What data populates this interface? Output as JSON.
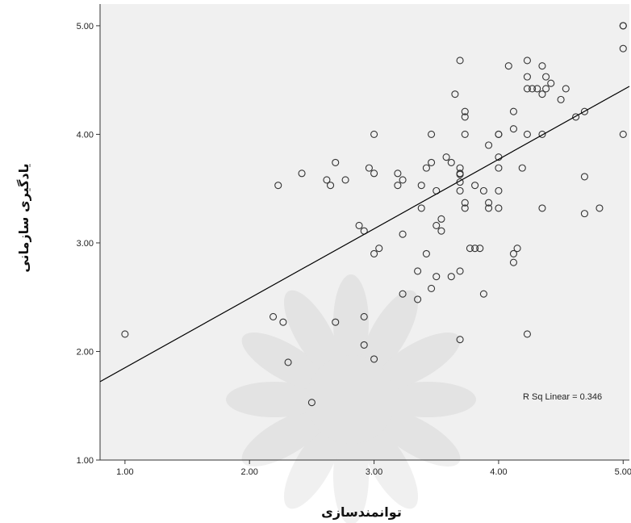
{
  "chart_data": {
    "type": "scatter",
    "xlabel": "توانمندسازی",
    "ylabel": "یادگیری سازمانی",
    "xlim": [
      0.8,
      5.05
    ],
    "ylim": [
      1.0,
      5.2
    ],
    "x_ticks": [
      "1.00",
      "2.00",
      "3.00",
      "4.00",
      "5.00"
    ],
    "y_ticks": [
      "1.00",
      "2.00",
      "3.00",
      "4.00",
      "5.00"
    ],
    "annotation": "R Sq Linear = 0.346",
    "fit_line": {
      "intercept": 1.21,
      "slope": 0.64
    },
    "grid": false,
    "marker": "hollow-circle",
    "colors": {
      "plot_bg": "#f0f0f0",
      "marker_stroke": "#333333",
      "line": "#000000"
    },
    "points": [
      [
        1.0,
        2.16
      ],
      [
        2.19,
        2.32
      ],
      [
        2.23,
        3.53
      ],
      [
        2.27,
        2.27
      ],
      [
        2.31,
        1.9
      ],
      [
        2.42,
        3.64
      ],
      [
        2.5,
        1.53
      ],
      [
        2.62,
        3.58
      ],
      [
        2.65,
        3.53
      ],
      [
        2.69,
        3.74
      ],
      [
        2.69,
        2.27
      ],
      [
        2.77,
        3.58
      ],
      [
        2.88,
        3.16
      ],
      [
        2.92,
        3.11
      ],
      [
        2.92,
        2.32
      ],
      [
        2.92,
        2.06
      ],
      [
        2.96,
        3.69
      ],
      [
        3.0,
        3.64
      ],
      [
        3.0,
        4.0
      ],
      [
        3.0,
        2.9
      ],
      [
        3.0,
        1.93
      ],
      [
        3.04,
        2.95
      ],
      [
        3.19,
        3.64
      ],
      [
        3.19,
        3.53
      ],
      [
        3.23,
        3.58
      ],
      [
        3.23,
        3.08
      ],
      [
        3.23,
        2.53
      ],
      [
        3.35,
        2.74
      ],
      [
        3.35,
        2.48
      ],
      [
        3.38,
        3.32
      ],
      [
        3.38,
        3.53
      ],
      [
        3.42,
        2.9
      ],
      [
        3.42,
        3.69
      ],
      [
        3.46,
        2.58
      ],
      [
        3.46,
        3.74
      ],
      [
        3.46,
        4.0
      ],
      [
        3.5,
        3.16
      ],
      [
        3.5,
        3.48
      ],
      [
        3.5,
        2.69
      ],
      [
        3.54,
        3.11
      ],
      [
        3.54,
        3.22
      ],
      [
        3.58,
        3.79
      ],
      [
        3.62,
        2.69
      ],
      [
        3.62,
        3.74
      ],
      [
        3.65,
        4.37
      ],
      [
        3.69,
        3.69
      ],
      [
        3.69,
        3.64
      ],
      [
        3.69,
        3.63
      ],
      [
        3.69,
        3.56
      ],
      [
        3.69,
        3.48
      ],
      [
        3.69,
        2.74
      ],
      [
        3.69,
        2.11
      ],
      [
        3.69,
        4.68
      ],
      [
        3.73,
        4.21
      ],
      [
        3.73,
        4.16
      ],
      [
        3.73,
        4.0
      ],
      [
        3.73,
        3.37
      ],
      [
        3.73,
        3.32
      ],
      [
        3.77,
        2.95
      ],
      [
        3.81,
        2.95
      ],
      [
        3.81,
        3.53
      ],
      [
        3.85,
        2.95
      ],
      [
        3.88,
        3.48
      ],
      [
        3.88,
        2.53
      ],
      [
        3.92,
        3.37
      ],
      [
        3.92,
        3.32
      ],
      [
        3.92,
        3.9
      ],
      [
        4.0,
        4.0
      ],
      [
        4.0,
        3.79
      ],
      [
        4.0,
        3.69
      ],
      [
        4.0,
        3.48
      ],
      [
        4.0,
        3.32
      ],
      [
        4.0,
        4.0
      ],
      [
        4.08,
        4.63
      ],
      [
        4.12,
        4.05
      ],
      [
        4.12,
        4.21
      ],
      [
        4.12,
        2.9
      ],
      [
        4.12,
        2.82
      ],
      [
        4.15,
        2.95
      ],
      [
        4.19,
        3.69
      ],
      [
        4.23,
        4.68
      ],
      [
        4.23,
        4.53
      ],
      [
        4.23,
        4.42
      ],
      [
        4.23,
        4.0
      ],
      [
        4.23,
        2.16
      ],
      [
        4.27,
        4.42
      ],
      [
        4.31,
        4.42
      ],
      [
        4.35,
        4.63
      ],
      [
        4.35,
        4.37
      ],
      [
        4.35,
        4.0
      ],
      [
        4.35,
        3.32
      ],
      [
        4.38,
        4.53
      ],
      [
        4.38,
        4.42
      ],
      [
        4.42,
        4.47
      ],
      [
        4.5,
        4.32
      ],
      [
        4.54,
        4.42
      ],
      [
        4.62,
        4.16
      ],
      [
        4.69,
        3.61
      ],
      [
        4.69,
        4.21
      ],
      [
        4.69,
        3.27
      ],
      [
        4.81,
        3.32
      ],
      [
        5.0,
        5.0
      ],
      [
        5.0,
        4.79
      ],
      [
        5.0,
        4.0
      ],
      [
        5.0,
        5.0
      ]
    ]
  }
}
